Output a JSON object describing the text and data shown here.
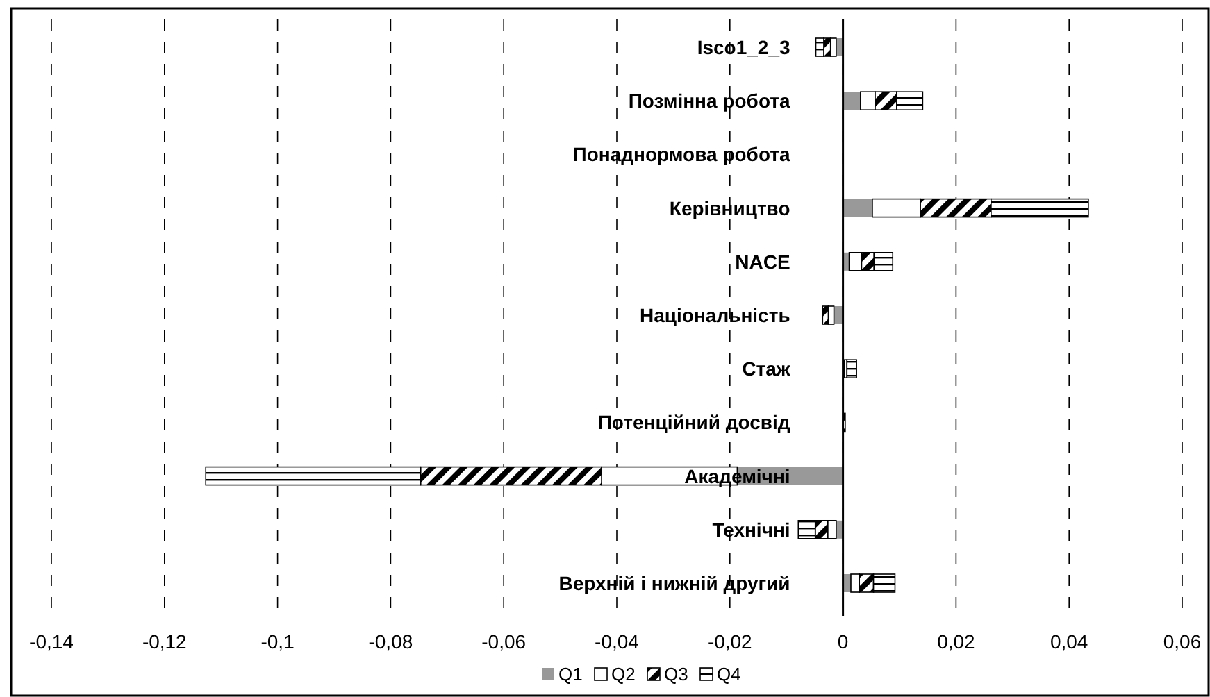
{
  "chart_data": {
    "type": "bar",
    "orientation": "horizontal",
    "stacked": true,
    "categories": [
      "Isco1_2_3",
      "Позмінна робота",
      "Понаднормова робота",
      "Керівництво",
      "NACE",
      "Національність",
      "Стаж",
      "Потенційний досвід",
      "Академічні",
      "Технічні",
      "Верхній і нижній другий"
    ],
    "series": [
      {
        "name": "Q1",
        "color": "#999999",
        "values": [
          -0.0012,
          0.0031,
          0,
          0.0052,
          0.0011,
          -0.0016,
          0.0002,
          0,
          -0.0187,
          -0.0012,
          0.0014
        ]
      },
      {
        "name": "Q2",
        "color": "#ffffff",
        "values": [
          -0.001,
          0.0026,
          0,
          0.0085,
          0.0022,
          -0.001,
          0.0005,
          0,
          -0.024,
          -0.0015,
          0.0015
        ]
      },
      {
        "name": "Q3",
        "color": "#000000",
        "values": [
          -0.0012,
          0.0038,
          0,
          0.0125,
          0.0022,
          -0.001,
          0,
          0.0004,
          -0.032,
          -0.0022,
          0.0025
        ]
      },
      {
        "name": "Q4",
        "color": "#000000",
        "values": [
          -0.0014,
          0.0046,
          0,
          0.0172,
          0.0033,
          0,
          0.0017,
          0,
          -0.038,
          -0.003,
          0.0038
        ]
      }
    ],
    "xlim": [
      -0.14,
      0.06
    ],
    "xticks": [
      {
        "value": -0.14,
        "label": "-0,14"
      },
      {
        "value": -0.12,
        "label": "-0,12"
      },
      {
        "value": -0.1,
        "label": "-0,1"
      },
      {
        "value": -0.08,
        "label": "-0,08"
      },
      {
        "value": -0.06,
        "label": "-0,06"
      },
      {
        "value": -0.04,
        "label": "-0,04"
      },
      {
        "value": -0.02,
        "label": "-0,02"
      },
      {
        "value": 0,
        "label": "0"
      },
      {
        "value": 0.02,
        "label": "0,02"
      },
      {
        "value": 0.04,
        "label": "0,04"
      },
      {
        "value": 0.06,
        "label": "0,06"
      }
    ],
    "grid": "x",
    "legend": "bottom"
  }
}
